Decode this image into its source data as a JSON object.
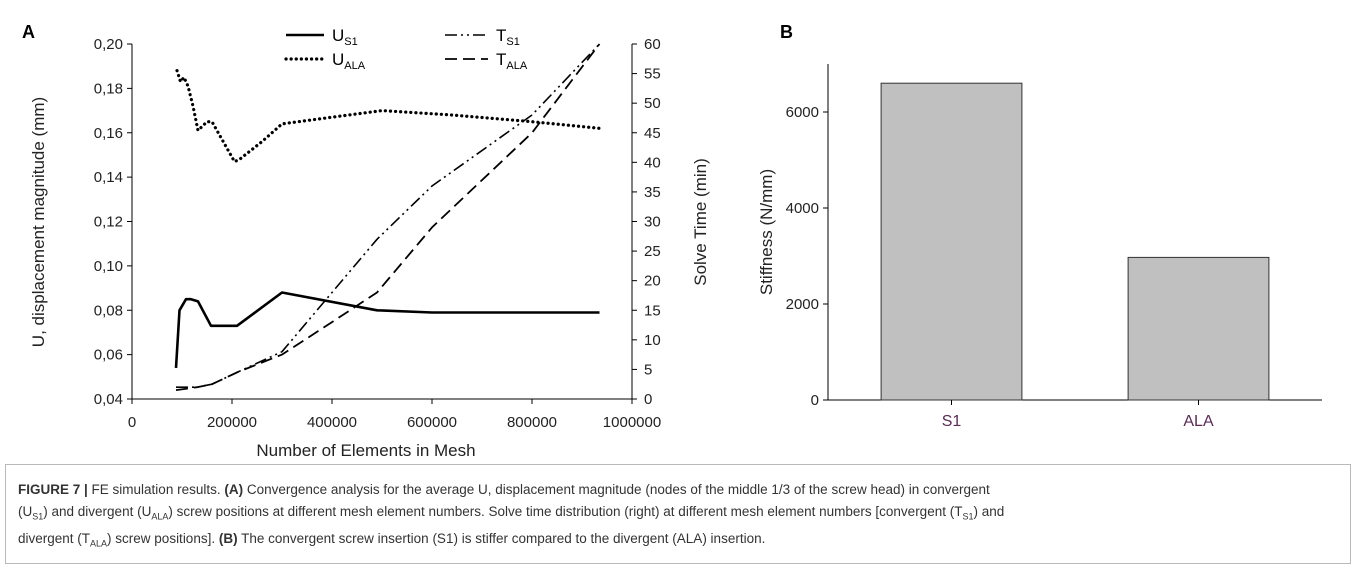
{
  "chart_data": [
    {
      "panel": "A",
      "type": "line",
      "xlabel": "Number of Elements in Mesh",
      "ylabel": "U, displacement magnitude (mm)",
      "y2label": "Solve Time (min)",
      "xlim": [
        0,
        1000000
      ],
      "ylim": [
        0.04,
        0.2
      ],
      "y2lim": [
        0,
        60
      ],
      "x_ticks": [
        0,
        200000,
        400000,
        600000,
        800000,
        1000000
      ],
      "x_tick_labels": [
        "0",
        "200000",
        "400000",
        "600000",
        "800000",
        "1000000"
      ],
      "y_ticks": [
        0.04,
        0.06,
        0.08,
        0.1,
        0.12,
        0.14,
        0.16,
        0.18,
        0.2
      ],
      "y_tick_labels": [
        "0,04",
        "0,06",
        "0,08",
        "0,10",
        "0,12",
        "0,14",
        "0,16",
        "0,18",
        "0,20"
      ],
      "y2_ticks": [
        0,
        5,
        10,
        15,
        20,
        25,
        30,
        35,
        40,
        45,
        50,
        55,
        60
      ],
      "y2_tick_labels": [
        "0",
        "5",
        "10",
        "15",
        "20",
        "25",
        "30",
        "35",
        "40",
        "45",
        "50",
        "55",
        "60"
      ],
      "grid": false,
      "legend_position": "top-center",
      "series": [
        {
          "name": "U",
          "name_sub": "S1",
          "axis": "left",
          "style": "solid",
          "x": [
            88000,
            95000,
            108000,
            118000,
            132000,
            158000,
            210000,
            300000,
            490000,
            600000,
            935000
          ],
          "y": [
            0.054,
            0.08,
            0.085,
            0.085,
            0.084,
            0.073,
            0.073,
            0.088,
            0.08,
            0.079,
            0.079
          ]
        },
        {
          "name": "U",
          "name_sub": "ALA",
          "axis": "left",
          "style": "dotted",
          "x": [
            90000,
            97000,
            104000,
            112000,
            122000,
            132000,
            150000,
            160000,
            175000,
            205000,
            215000,
            260000,
            300000,
            400000,
            500000,
            640000,
            800000,
            935000
          ],
          "y": [
            0.188,
            0.183,
            0.185,
            0.181,
            0.172,
            0.161,
            0.165,
            0.165,
            0.159,
            0.147,
            0.148,
            0.156,
            0.164,
            0.167,
            0.17,
            0.168,
            0.165,
            0.162
          ]
        },
        {
          "name": "T",
          "name_sub": "S1",
          "axis": "right",
          "style": "dash-dot",
          "x": [
            88000,
            130000,
            160000,
            210000,
            300000,
            400000,
            490000,
            600000,
            800000,
            935000
          ],
          "y": [
            2,
            2,
            2.5,
            4.5,
            8,
            18,
            27,
            36,
            48,
            60
          ]
        },
        {
          "name": "T",
          "name_sub": "ALA",
          "axis": "right",
          "style": "dashed",
          "x": [
            88000,
            130000,
            160000,
            210000,
            300000,
            400000,
            490000,
            600000,
            800000,
            935000
          ],
          "y": [
            1.5,
            2,
            2.5,
            4.5,
            7.5,
            13,
            18,
            29,
            45,
            60
          ]
        }
      ]
    },
    {
      "panel": "B",
      "type": "bar",
      "ylabel": "Stiffness (N/mm)",
      "categories": [
        "S1",
        "ALA"
      ],
      "values": [
        6600,
        2970
      ],
      "ylim": [
        0,
        7000
      ],
      "y_ticks": [
        0,
        2000,
        4000,
        6000
      ],
      "y_tick_labels": [
        "0",
        "2000",
        "4000",
        "6000"
      ],
      "grid": false,
      "bar_color": "#c0c0c0"
    }
  ],
  "caption": {
    "lines": [
      [
        {
          "t": "FIGURE 7 | ",
          "b": true
        },
        {
          "t": "FE simulation results. "
        },
        {
          "t": "(A)",
          "b": true
        },
        {
          "t": " Convergence analysis for the average U, displacement magnitude (nodes of the middle 1/3 of the screw head) in convergent"
        }
      ],
      [
        {
          "t": "(U"
        },
        {
          "t": "S1",
          "sub": true
        },
        {
          "t": ") and divergent (U"
        },
        {
          "t": "ALA",
          "sub": true
        },
        {
          "t": ") screw positions at different mesh element numbers. Solve time distribution (right) at different mesh element numbers [convergent (T"
        },
        {
          "t": "S1",
          "sub": true
        },
        {
          "t": ") and"
        }
      ],
      [
        {
          "t": "divergent (T"
        },
        {
          "t": "ALA",
          "sub": true
        },
        {
          "t": ") screw positions]. "
        },
        {
          "t": "(B)",
          "b": true
        },
        {
          "t": " The convergent screw insertion (S1) is stiffer compared to the divergent (ALA) insertion."
        }
      ]
    ]
  },
  "colors": {
    "line": "#000000",
    "bar_fill": "#c0c0c0",
    "bar_tick_text": "#5b2a55",
    "caption_text": "#333333",
    "caption_border": "#b9b9b9"
  }
}
